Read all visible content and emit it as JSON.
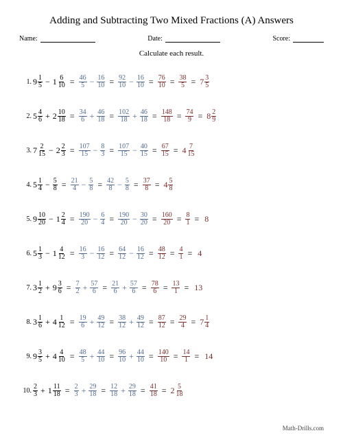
{
  "title": "Adding and Subtracting Two Mixed Fractions (A) Answers",
  "labels": {
    "name": "Name:",
    "date": "Date:",
    "score": "Score:"
  },
  "instruction": "Calculate each result.",
  "footer": "Math-Drills.com",
  "colors": {
    "step_blue": "#506a90",
    "step_red": "#7a2c2c"
  },
  "problems": [
    {
      "n": "1.",
      "a": {
        "w": "9",
        "num": "1",
        "den": "5"
      },
      "op": "−",
      "b": {
        "w": "1",
        "num": "6",
        "den": "10"
      },
      "s2a": {
        "num": "46",
        "den": "5"
      },
      "s2b": {
        "num": "16",
        "den": "10"
      },
      "s3a": {
        "num": "92",
        "den": "10"
      },
      "s3b": {
        "num": "16",
        "den": "10"
      },
      "s4": {
        "num": "76",
        "den": "10"
      },
      "s5": {
        "num": "38",
        "den": "5"
      },
      "final": {
        "w": "7",
        "num": "3",
        "den": "5"
      }
    },
    {
      "n": "2.",
      "a": {
        "w": "5",
        "num": "4",
        "den": "6"
      },
      "op": "+",
      "b": {
        "w": "2",
        "num": "10",
        "den": "18"
      },
      "s2a": {
        "num": "34",
        "den": "6"
      },
      "s2b": {
        "num": "46",
        "den": "18"
      },
      "s3a": {
        "num": "102",
        "den": "18"
      },
      "s3b": {
        "num": "46",
        "den": "18"
      },
      "s4": {
        "num": "148",
        "den": "18"
      },
      "s5": {
        "num": "74",
        "den": "9"
      },
      "final": {
        "w": "8",
        "num": "2",
        "den": "9"
      }
    },
    {
      "n": "3.",
      "a": {
        "w": "7",
        "num": "2",
        "den": "15"
      },
      "op": "−",
      "b": {
        "w": "2",
        "num": "2",
        "den": "3"
      },
      "s2a": {
        "num": "107",
        "den": "15"
      },
      "s2b": {
        "num": "8",
        "den": "3"
      },
      "s3a": {
        "num": "107",
        "den": "15"
      },
      "s3b": {
        "num": "40",
        "den": "15"
      },
      "s4": {
        "num": "67",
        "den": "15"
      },
      "final": {
        "w": "4",
        "num": "7",
        "den": "15"
      }
    },
    {
      "n": "4.",
      "a": {
        "w": "5",
        "num": "1",
        "den": "4"
      },
      "op": "−",
      "b": {
        "w": "",
        "num": "5",
        "den": "8"
      },
      "s2a": {
        "num": "21",
        "den": "4"
      },
      "s2b": {
        "num": "5",
        "den": "8"
      },
      "s3a": {
        "num": "42",
        "den": "8"
      },
      "s3b": {
        "num": "5",
        "den": "8"
      },
      "s4": {
        "num": "37",
        "den": "8"
      },
      "final": {
        "w": "4",
        "num": "5",
        "den": "8"
      }
    },
    {
      "n": "5.",
      "a": {
        "w": "9",
        "num": "10",
        "den": "20"
      },
      "op": "−",
      "b": {
        "w": "1",
        "num": "2",
        "den": "4"
      },
      "s2a": {
        "num": "190",
        "den": "20"
      },
      "s2b": {
        "num": "6",
        "den": "4"
      },
      "s3a": {
        "num": "190",
        "den": "20"
      },
      "s3b": {
        "num": "30",
        "den": "20"
      },
      "s4": {
        "num": "160",
        "den": "20"
      },
      "s5": {
        "num": "8",
        "den": "1"
      },
      "scalar": "8"
    },
    {
      "n": "6.",
      "a": {
        "w": "5",
        "num": "1",
        "den": "3"
      },
      "op": "−",
      "b": {
        "w": "1",
        "num": "4",
        "den": "12"
      },
      "s2a": {
        "num": "16",
        "den": "3"
      },
      "s2b": {
        "num": "16",
        "den": "12"
      },
      "s3a": {
        "num": "64",
        "den": "12"
      },
      "s3b": {
        "num": "16",
        "den": "12"
      },
      "s4": {
        "num": "48",
        "den": "12"
      },
      "s5": {
        "num": "4",
        "den": "1"
      },
      "scalar": "4"
    },
    {
      "n": "7.",
      "a": {
        "w": "3",
        "num": "1",
        "den": "2"
      },
      "op": "+",
      "b": {
        "w": "9",
        "num": "3",
        "den": "6"
      },
      "s2a": {
        "num": "7",
        "den": "2"
      },
      "s2b": {
        "num": "57",
        "den": "6"
      },
      "s3a": {
        "num": "21",
        "den": "6"
      },
      "s3b": {
        "num": "57",
        "den": "6"
      },
      "s4": {
        "num": "78",
        "den": "6"
      },
      "s5": {
        "num": "13",
        "den": "1"
      },
      "scalar": "13"
    },
    {
      "n": "8.",
      "a": {
        "w": "3",
        "num": "1",
        "den": "6"
      },
      "op": "+",
      "b": {
        "w": "4",
        "num": "1",
        "den": "12"
      },
      "s2a": {
        "num": "19",
        "den": "6"
      },
      "s2b": {
        "num": "49",
        "den": "12"
      },
      "s3a": {
        "num": "38",
        "den": "12"
      },
      "s3b": {
        "num": "49",
        "den": "12"
      },
      "s4": {
        "num": "87",
        "den": "12"
      },
      "s5": {
        "num": "29",
        "den": "4"
      },
      "final": {
        "w": "7",
        "num": "1",
        "den": "4"
      }
    },
    {
      "n": "9.",
      "a": {
        "w": "9",
        "num": "3",
        "den": "5"
      },
      "op": "+",
      "b": {
        "w": "4",
        "num": "4",
        "den": "10"
      },
      "s2a": {
        "num": "48",
        "den": "5"
      },
      "s2b": {
        "num": "44",
        "den": "10"
      },
      "s3a": {
        "num": "96",
        "den": "10"
      },
      "s3b": {
        "num": "44",
        "den": "10"
      },
      "s4": {
        "num": "140",
        "den": "10"
      },
      "s5": {
        "num": "14",
        "den": "1"
      },
      "scalar": "14"
    },
    {
      "n": "10.",
      "a": {
        "w": "",
        "num": "2",
        "den": "3"
      },
      "op": "+",
      "b": {
        "w": "1",
        "num": "11",
        "den": "18"
      },
      "s2a": {
        "num": "2",
        "den": "3"
      },
      "s2b": {
        "num": "29",
        "den": "18"
      },
      "s3a": {
        "num": "12",
        "den": "18"
      },
      "s3b": {
        "num": "29",
        "den": "18"
      },
      "s4": {
        "num": "41",
        "den": "18"
      },
      "final": {
        "w": "2",
        "num": "5",
        "den": "18"
      }
    }
  ]
}
